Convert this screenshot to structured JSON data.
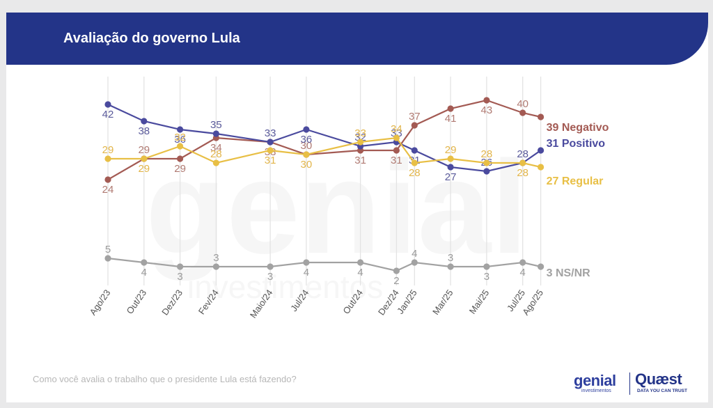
{
  "header": {
    "title": "Avaliação do governo Lula"
  },
  "footer": {
    "question": "Como você avalia o trabalho que o presidente Lula está fazendo?",
    "logo_genial": "genial",
    "logo_genial_sub": "investimentos",
    "logo_quaest": "Quæst",
    "logo_quaest_sub": "DATA YOU CAN TRUST"
  },
  "watermark": {
    "main": "genial",
    "sub": "investimentos"
  },
  "chart_data": {
    "type": "line",
    "categories": [
      "Ago/23",
      "Out/23",
      "Dez/23",
      "Fev/24",
      "Maio/24",
      "Jul/24",
      "Out/24",
      "Dez/24",
      "Jan/25",
      "Mar/25",
      "Mai/25",
      "Jul/25",
      "Ago/25"
    ],
    "x_months": [
      0,
      2,
      4,
      6,
      9,
      11,
      14,
      16,
      17,
      19,
      21,
      23,
      24
    ],
    "series": [
      {
        "name": "Negativo",
        "end_label": "39 Negativo",
        "color": "#a35a53",
        "label_color": "#b07a72",
        "values": [
          24,
          29,
          29,
          34,
          33,
          30,
          31,
          31,
          37,
          41,
          43,
          40,
          39
        ],
        "label_pos": [
          "below",
          "above",
          "below",
          "below",
          "below",
          "above",
          "below",
          "below",
          "above",
          "below",
          "below",
          "above",
          ""
        ]
      },
      {
        "name": "Positivo",
        "end_label": "31 Positivo",
        "color": "#4a4a9e",
        "label_color": "#5a5a9a",
        "values": [
          42,
          38,
          36,
          35,
          33,
          36,
          32,
          33,
          31,
          27,
          26,
          28,
          31
        ],
        "label_pos": [
          "below",
          "below",
          "below",
          "above",
          "above",
          "below",
          "above",
          "above",
          "below",
          "below",
          "above",
          "above",
          ""
        ]
      },
      {
        "name": "Regular",
        "end_label": "27 Regular",
        "color": "#e8bf45",
        "label_color": "#e2b54a",
        "values": [
          29,
          29,
          32,
          28,
          31,
          30,
          33,
          34,
          28,
          29,
          28,
          28,
          27
        ],
        "label_pos": [
          "above",
          "below",
          "above",
          "above",
          "below",
          "below",
          "above",
          "above",
          "below",
          "above",
          "above",
          "below",
          ""
        ]
      },
      {
        "name": "NS/NR",
        "end_label": "3 NS/NR",
        "color": "#a2a2a2",
        "label_color": "#9a9a9a",
        "values": [
          5,
          4,
          3,
          3,
          3,
          4,
          4,
          2,
          4,
          3,
          3,
          4,
          3
        ],
        "label_pos": [
          "above",
          "below",
          "below",
          "above",
          "below",
          "below",
          "below",
          "below",
          "above",
          "above",
          "below",
          "below",
          ""
        ]
      }
    ]
  }
}
